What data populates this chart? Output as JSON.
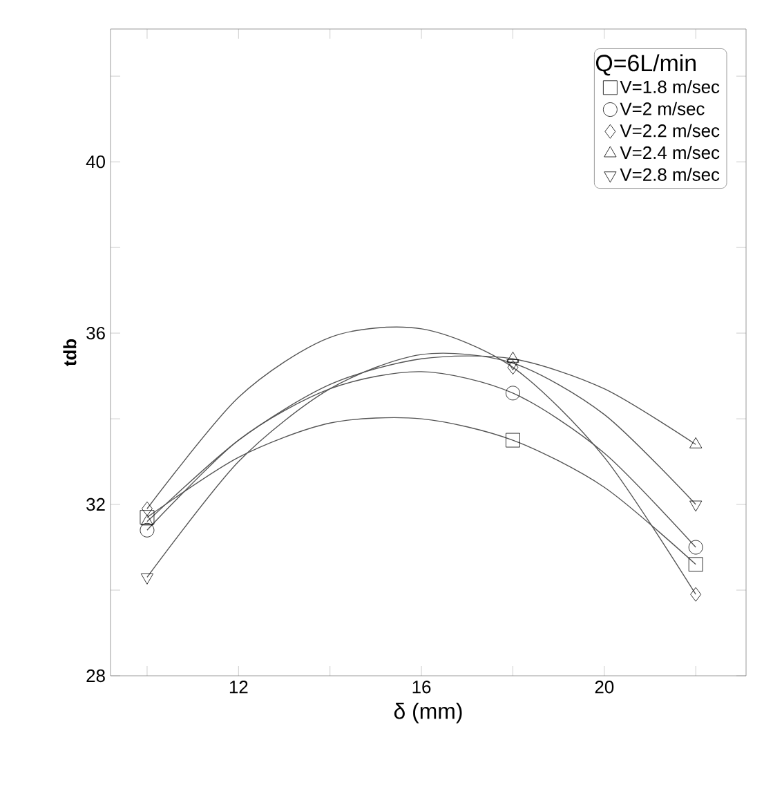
{
  "chart_data": {
    "type": "scatter",
    "xlabel": "δ (mm)",
    "ylabel": "tdb",
    "legend_title": "Q=6L/min",
    "legend": "top right",
    "grid": false,
    "xlim": [
      9.2,
      23.1
    ],
    "ylim": [
      28,
      43.1
    ],
    "xticks": [
      {
        "value": 10,
        "label": null
      },
      12,
      {
        "value": 14,
        "label": null
      },
      16,
      {
        "value": 18,
        "label": null
      },
      20,
      {
        "value": 22,
        "label": null
      }
    ],
    "yticks": [
      28,
      {
        "value": 30,
        "label": null
      },
      32,
      {
        "value": 34,
        "label": null
      },
      36,
      {
        "value": 38,
        "label": null
      },
      40,
      {
        "value": 42,
        "label": null
      }
    ],
    "series": [
      {
        "name": "V=1.8 m/sec",
        "color": "#000000",
        "marker": "square",
        "x": [
          10,
          18,
          22
        ],
        "values": [
          31.7,
          33.5,
          30.6
        ]
      },
      {
        "name": "V=2 m/sec",
        "color": "#000000",
        "marker": "circle",
        "x": [
          10,
          18,
          22
        ],
        "values": [
          31.4,
          34.6,
          31.0
        ]
      },
      {
        "name": "V=2.2 m/sec",
        "color": "#000000",
        "marker": "diamond",
        "x": [
          10,
          18,
          22
        ],
        "values": [
          31.9,
          35.2,
          29.9
        ]
      },
      {
        "name": "V=2.4 m/sec",
        "color": "#000000",
        "marker": "triangle",
        "x": [
          10,
          18,
          22
        ],
        "values": [
          31.6,
          35.4,
          33.4
        ]
      },
      {
        "name": "V=2.8 m/sec",
        "color": "#000000",
        "marker": "triangle-down",
        "x": [
          10,
          18,
          22
        ],
        "values": [
          30.3,
          35.3,
          32.0
        ]
      },
      {
        "type": "line",
        "color": "#555555",
        "marker": "none",
        "x": [
          10,
          12,
          14,
          16,
          18,
          20,
          22
        ],
        "values": [
          31.7,
          33.1,
          33.9,
          34.0,
          33.5,
          32.4,
          30.6
        ]
      },
      {
        "type": "line",
        "color": "#555555",
        "marker": "none",
        "x": [
          10,
          12,
          14,
          16,
          18,
          20,
          22
        ],
        "values": [
          31.4,
          33.5,
          34.7,
          35.1,
          34.6,
          33.2,
          31.0
        ]
      },
      {
        "type": "line",
        "color": "#555555",
        "marker": "none",
        "x": [
          10,
          12,
          14,
          16,
          18,
          20,
          22
        ],
        "values": [
          31.9,
          34.5,
          35.9,
          36.1,
          35.2,
          33.1,
          29.9
        ]
      },
      {
        "type": "line",
        "color": "#555555",
        "marker": "none",
        "x": [
          10,
          12,
          14,
          16,
          18,
          20,
          22
        ],
        "values": [
          31.6,
          33.5,
          34.8,
          35.4,
          35.4,
          34.7,
          33.4
        ]
      },
      {
        "type": "line",
        "color": "#555555",
        "marker": "none",
        "x": [
          10,
          12,
          14,
          16,
          18,
          20,
          22
        ],
        "values": [
          30.3,
          33.0,
          34.7,
          35.5,
          35.3,
          34.1,
          32.0
        ]
      }
    ]
  }
}
